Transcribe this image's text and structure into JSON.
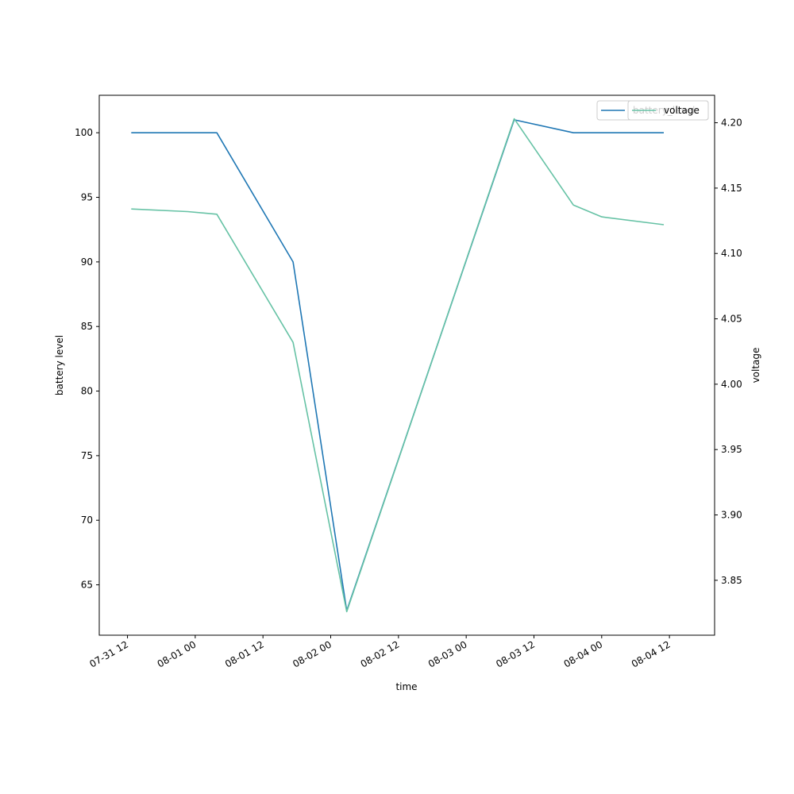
{
  "chart_data": {
    "type": "line",
    "xlabel": "time",
    "ylabel_left": "battery level",
    "ylabel_right": "voltage",
    "x_range": [
      "2023-07-31T07:00",
      "2023-08-04T20:00"
    ],
    "x_ticks": [
      {
        "t": "2023-07-31T12:00",
        "label": "07-31 12"
      },
      {
        "t": "2023-08-01T00:00",
        "label": "08-01 00"
      },
      {
        "t": "2023-08-01T12:00",
        "label": "08-01 12"
      },
      {
        "t": "2023-08-02T00:00",
        "label": "08-02 00"
      },
      {
        "t": "2023-08-02T12:00",
        "label": "08-02 12"
      },
      {
        "t": "2023-08-03T00:00",
        "label": "08-03 00"
      },
      {
        "t": "2023-08-03T12:00",
        "label": "08-03 12"
      },
      {
        "t": "2023-08-04T00:00",
        "label": "08-04 00"
      },
      {
        "t": "2023-08-04T12:00",
        "label": "08-04 12"
      }
    ],
    "y_left_range": [
      61.1,
      102.9
    ],
    "y_left_ticks": [
      65,
      70,
      75,
      80,
      85,
      90,
      95,
      100
    ],
    "y_right_range": [
      3.808,
      4.221
    ],
    "y_right_ticks": [
      3.85,
      3.9,
      3.95,
      4.0,
      4.05,
      4.1,
      4.15,
      4.2
    ],
    "y_right_tick_labels": [
      "3.85",
      "3.90",
      "3.95",
      "4.00",
      "4.05",
      "4.10",
      "4.15",
      "4.20"
    ],
    "grid": false,
    "legend": "upper-right",
    "series": [
      {
        "name": "battery_level",
        "axis": "left",
        "color": "#1f77b4",
        "points": [
          {
            "t": "2023-07-31T12:40",
            "y": 100
          },
          {
            "t": "2023-08-01T03:50",
            "y": 100
          },
          {
            "t": "2023-08-01T17:20",
            "y": 90
          },
          {
            "t": "2023-08-02T02:50",
            "y": 63
          },
          {
            "t": "2023-08-03T08:30",
            "y": 101
          },
          {
            "t": "2023-08-03T19:00",
            "y": 100
          },
          {
            "t": "2023-08-04T11:00",
            "y": 100
          }
        ]
      },
      {
        "name": "voltage",
        "axis": "right",
        "color": "#66c2a5",
        "points": [
          {
            "t": "2023-07-31T12:40",
            "y": 4.134
          },
          {
            "t": "2023-07-31T22:40",
            "y": 4.132
          },
          {
            "t": "2023-08-01T03:50",
            "y": 4.13
          },
          {
            "t": "2023-08-01T17:20",
            "y": 4.032
          },
          {
            "t": "2023-08-02T02:50",
            "y": 3.826
          },
          {
            "t": "2023-08-03T08:30",
            "y": 4.203
          },
          {
            "t": "2023-08-03T19:00",
            "y": 4.137
          },
          {
            "t": "2023-08-04T00:00",
            "y": 4.128
          },
          {
            "t": "2023-08-04T11:00",
            "y": 4.122
          }
        ]
      }
    ],
    "legend_entries": [
      {
        "label": "battery_level",
        "color": "#1f77b4"
      },
      {
        "label": "voltage",
        "color": "#66c2a5"
      }
    ]
  }
}
